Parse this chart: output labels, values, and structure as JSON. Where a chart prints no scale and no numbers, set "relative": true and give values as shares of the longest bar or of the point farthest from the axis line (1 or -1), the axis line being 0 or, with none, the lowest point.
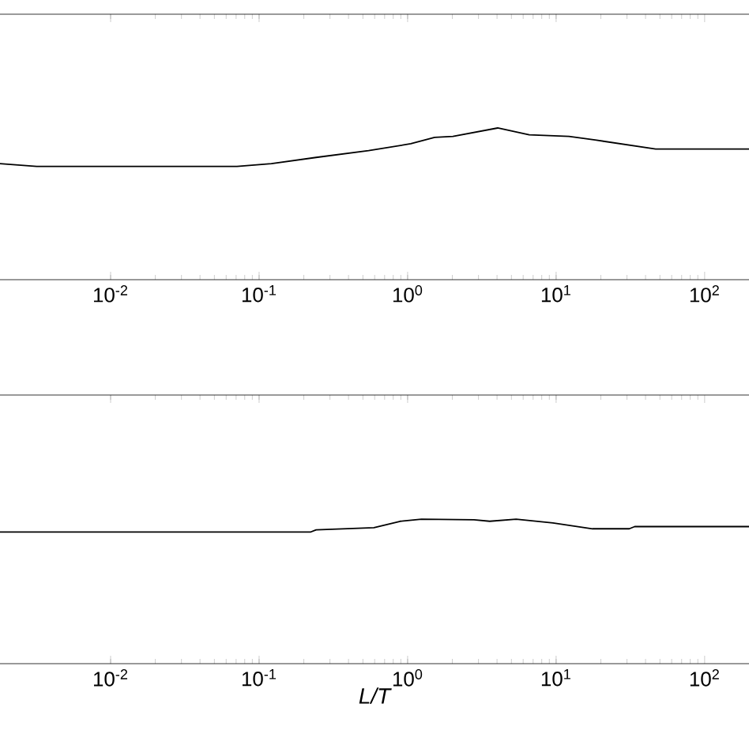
{
  "chart_data": [
    {
      "type": "line",
      "relative": true,
      "log": "x",
      "tick_labels": "x",
      "xlim": [
        0.0018,
        199
      ],
      "xticks": [
        {
          "value": 0.01,
          "label": "10$^{-2}$"
        },
        {
          "value": 0.1,
          "label": "10$^{-1}$"
        },
        {
          "value": 1,
          "label": "10$^{0}$"
        },
        {
          "value": 10,
          "label": "10$^{1}$"
        },
        {
          "value": 100,
          "label": "10$^{2}$"
        }
      ],
      "series": [
        {
          "color": "#000000",
          "x": [
            0.0018,
            0.00318,
            0.071,
            0.121,
            0.242,
            0.546,
            1.05,
            1.52,
            2.02,
            4.04,
            6.59,
            12.2,
            18.3,
            46.8,
            199
          ],
          "values": [
            0.765,
            0.747,
            0.747,
            0.765,
            0.806,
            0.851,
            0.896,
            0.938,
            0.945,
            1.0,
            0.955,
            0.945,
            0.921,
            0.861,
            0.861
          ]
        }
      ]
    },
    {
      "type": "line",
      "relative": true,
      "log": "x",
      "tick_labels": "x",
      "xlim": [
        0.0018,
        199
      ],
      "xlabel": "L/T",
      "xticks": [
        {
          "value": 0.01,
          "label": "10$^{-2}$"
        },
        {
          "value": 0.1,
          "label": "10$^{-1}$"
        },
        {
          "value": 1,
          "label": "10$^{0}$"
        },
        {
          "value": 10,
          "label": "10$^{1}$"
        },
        {
          "value": 100,
          "label": "10$^{2}$"
        }
      ],
      "series": [
        {
          "color": "#000000",
          "x": [
            0.0018,
            0.223,
            0.242,
            0.593,
            0.891,
            1.24,
            2.8,
            3.57,
            5.38,
            9.52,
            17.6,
            31.1,
            33.8,
            199
          ],
          "values": [
            0.912,
            0.912,
            0.927,
            0.942,
            0.986,
            1.0,
            0.996,
            0.986,
            1.0,
            0.974,
            0.934,
            0.934,
            0.949,
            0.949
          ]
        }
      ]
    }
  ]
}
